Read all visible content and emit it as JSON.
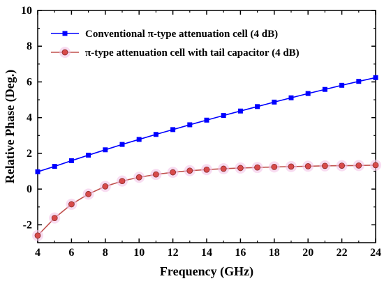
{
  "chart_data": {
    "type": "line",
    "xlabel": "Frequency (GHz)",
    "ylabel": "Relative Phase (Deg.)",
    "xlim": [
      4,
      24
    ],
    "ylim": [
      -3,
      10
    ],
    "xticks": [
      "4",
      "6",
      "8",
      "10",
      "12",
      "14",
      "16",
      "18",
      "20",
      "22",
      "24"
    ],
    "yticks": [
      "-2",
      "0",
      "2",
      "4",
      "6",
      "8",
      "10"
    ],
    "legend_placement": "top",
    "grid": false,
    "x": [
      4,
      5,
      6,
      7,
      8,
      9,
      10,
      11,
      12,
      13,
      14,
      15,
      16,
      17,
      18,
      19,
      20,
      21,
      22,
      23,
      24
    ],
    "series": [
      {
        "name": "Conventional π-type  attenuation cell (4 dB)",
        "color": "#0000ff",
        "marker": "square",
        "values": [
          0.97,
          1.27,
          1.59,
          1.9,
          2.2,
          2.5,
          2.78,
          3.06,
          3.33,
          3.6,
          3.86,
          4.12,
          4.37,
          4.62,
          4.87,
          5.11,
          5.35,
          5.58,
          5.81,
          6.03,
          6.24
        ]
      },
      {
        "name": "π-type attenuation cell with tail capacitor (4 dB)",
        "color": "#c0504d",
        "marker": "circle",
        "values": [
          -2.6,
          -1.62,
          -0.85,
          -0.28,
          0.15,
          0.45,
          0.66,
          0.82,
          0.94,
          1.03,
          1.09,
          1.14,
          1.18,
          1.21,
          1.24,
          1.26,
          1.28,
          1.3,
          1.31,
          1.32,
          1.34
        ]
      }
    ]
  }
}
